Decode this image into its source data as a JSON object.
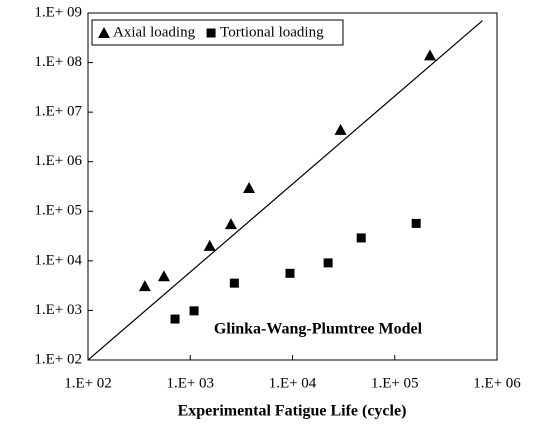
{
  "chart_data": {
    "type": "scatter",
    "log_x": true,
    "log_y": true,
    "xlabel": "Experimental Fatigue Life (cycle)",
    "annotation": "Glinka-Wang-Plumtree Model",
    "legend": "upper left",
    "xlim": [
      100,
      1000000
    ],
    "xticks": [
      {
        "value": 100,
        "label": "1.E+ 02"
      },
      {
        "value": 1000,
        "label": "1.E+ 03"
      },
      {
        "value": 10000,
        "label": "1.E+ 04"
      },
      {
        "value": 100000,
        "label": "1.E+ 05"
      },
      {
        "value": 1000000,
        "label": "1.E+ 06"
      }
    ],
    "ylim": [
      100,
      1000000000
    ],
    "yticks": [
      {
        "value": 100,
        "label": "1.E+ 02"
      },
      {
        "value": 1000,
        "label": "1.E+ 03"
      },
      {
        "value": 10000,
        "label": "1.E+ 04"
      },
      {
        "value": 100000,
        "label": "1.E+ 05"
      },
      {
        "value": 1000000,
        "label": "1.E+ 06"
      },
      {
        "value": 10000000,
        "label": "1.E+ 07"
      },
      {
        "value": 100000000,
        "label": "1.E+ 08"
      },
      {
        "value": 1000000000,
        "label": "1.E+ 09"
      }
    ],
    "series": [
      {
        "name": "Axial loading",
        "marker": "triangle",
        "color": "#000000",
        "x": [
          360,
          553,
          1550,
          2500,
          3760,
          29500,
          221000
        ],
        "values": [
          3100,
          4900,
          20000,
          55000,
          295000,
          4400000,
          140000000
        ]
      },
      {
        "name": "Tortional loading",
        "marker": "square",
        "color": "#000000",
        "x": [
          710,
          1090,
          2700,
          9450,
          22300,
          47000,
          162000
        ],
        "values": [
          670,
          980,
          3550,
          5600,
          9100,
          29000,
          57000
        ]
      }
    ],
    "reference_line": {
      "x": [
        100,
        720000
      ],
      "values": [
        100,
        700000000
      ],
      "color": "#000000"
    }
  }
}
